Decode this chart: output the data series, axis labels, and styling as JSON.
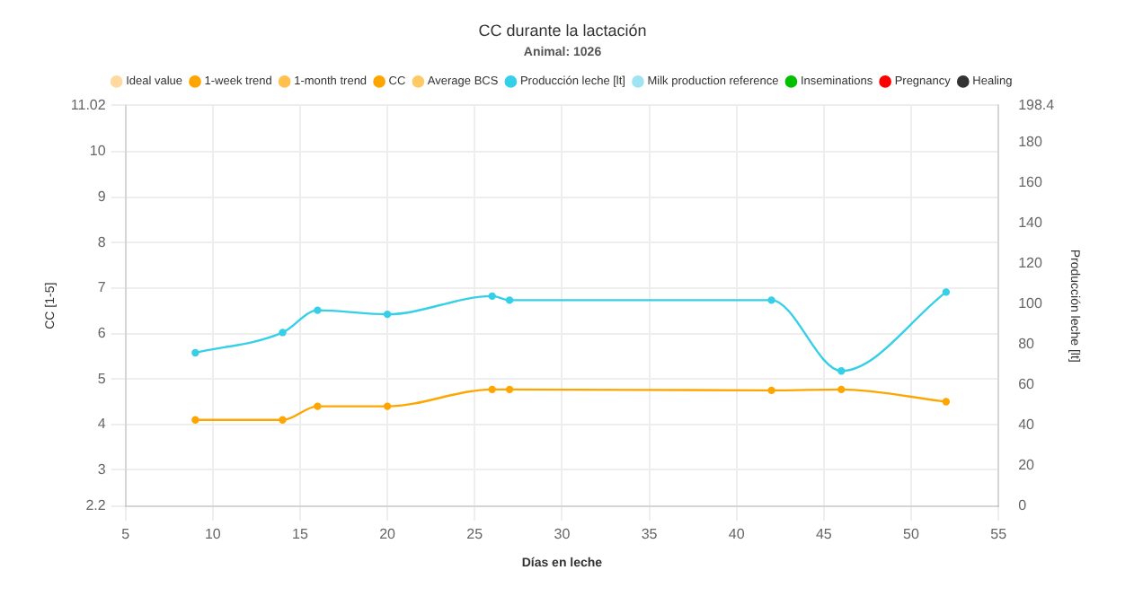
{
  "chart_data": {
    "type": "line",
    "title": "CC durante la lactación",
    "subtitle": "Animal: 1026",
    "xlabel": "Días en leche",
    "ylabel": "CC [1-5]",
    "y2label": "Producción leche [lt]",
    "x": [
      9,
      14,
      16,
      20,
      26,
      27,
      42,
      46,
      52
    ],
    "series": [
      {
        "name": "Ideal value",
        "color": "#ffd9a0",
        "values": [
          null,
          null,
          null,
          null,
          null,
          null,
          null,
          null,
          null
        ]
      },
      {
        "name": "1-week trend",
        "color": "#ffa500",
        "values": [
          null,
          null,
          null,
          null,
          null,
          null,
          null,
          null,
          null
        ]
      },
      {
        "name": "1-month trend",
        "color": "#ffc04d",
        "values": [
          null,
          null,
          null,
          null,
          null,
          null,
          null,
          null,
          null
        ]
      },
      {
        "name": "CC",
        "color": "#ffa500",
        "values": [
          4.1,
          4.1,
          4.4,
          4.4,
          4.77,
          4.77,
          4.75,
          4.77,
          4.5
        ]
      },
      {
        "name": "Average BCS",
        "color": "#ffc966",
        "values": [
          null,
          null,
          null,
          null,
          null,
          null,
          null,
          null,
          null
        ]
      },
      {
        "name": "Producción leche [lt]",
        "color": "#36cfe8",
        "axis": "y2",
        "values": [
          76,
          86,
          97,
          95,
          104,
          102,
          102,
          67,
          106
        ]
      },
      {
        "name": "Milk production reference",
        "color": "#a0e4f4",
        "axis": "y2",
        "values": [
          null,
          null,
          null,
          null,
          null,
          null,
          null,
          null,
          null
        ]
      },
      {
        "name": "Inseminations",
        "color": "#00c000",
        "values": [
          null,
          null,
          null,
          null,
          null,
          null,
          null,
          null,
          null
        ]
      },
      {
        "name": "Pregnancy",
        "color": "#ff0000",
        "values": [
          null,
          null,
          null,
          null,
          null,
          null,
          null,
          null,
          null
        ]
      },
      {
        "name": "Healing",
        "color": "#333333",
        "values": [
          null,
          null,
          null,
          null,
          null,
          null,
          null,
          null,
          null
        ]
      }
    ],
    "xlim": [
      5,
      55
    ],
    "xticks": [
      5,
      10,
      15,
      20,
      25,
      30,
      35,
      40,
      45,
      50,
      55
    ],
    "ylim": [
      2.2,
      11.02
    ],
    "yticks": [
      2.2,
      3,
      4,
      5,
      6,
      7,
      8,
      9,
      10,
      11.02
    ],
    "y2lim": [
      0,
      198.4
    ],
    "y2ticks": [
      0,
      20,
      40,
      60,
      80,
      100,
      120,
      140,
      160,
      180,
      198.4
    ],
    "grid": true,
    "legend": "top",
    "marker": "circle",
    "line_style": "solid"
  }
}
